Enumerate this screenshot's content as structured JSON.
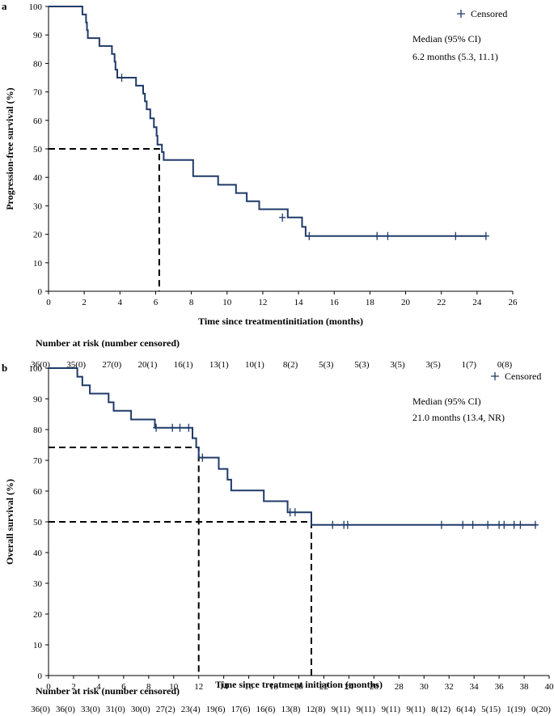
{
  "chart_data": [
    {
      "panel_label": "a",
      "type": "line",
      "subtype": "kaplan-meier",
      "title": "",
      "xlabel": "Time since treatmentinitiation (months)",
      "ylabel": "Progression-free survival (%)",
      "xlim": [
        0,
        26
      ],
      "ylim": [
        0,
        100
      ],
      "xticks": [
        0,
        2,
        4,
        6,
        8,
        10,
        12,
        14,
        16,
        18,
        20,
        22,
        24,
        26
      ],
      "yticks": [
        0,
        10,
        20,
        30,
        40,
        50,
        60,
        70,
        80,
        90,
        100
      ],
      "legend": {
        "label": "Censored",
        "marker": "+",
        "position": "top-right"
      },
      "annotation": {
        "line1": "Median (95% CI)",
        "line2": "6.2 months (5.3,  11.1)"
      },
      "medians": [
        {
          "x": 6.2,
          "y": 50
        }
      ],
      "curve": [
        [
          0,
          100
        ],
        [
          1.9,
          100
        ],
        [
          1.9,
          97.2
        ],
        [
          2.1,
          97.2
        ],
        [
          2.1,
          94.4
        ],
        [
          2.15,
          94.4
        ],
        [
          2.15,
          91.7
        ],
        [
          2.2,
          91.7
        ],
        [
          2.2,
          88.9
        ],
        [
          2.85,
          88.9
        ],
        [
          2.85,
          86.1
        ],
        [
          3.55,
          86.1
        ],
        [
          3.55,
          83.3
        ],
        [
          3.7,
          83.3
        ],
        [
          3.7,
          80.6
        ],
        [
          3.75,
          80.6
        ],
        [
          3.75,
          77.8
        ],
        [
          3.85,
          77.8
        ],
        [
          3.85,
          75.0
        ],
        [
          4.9,
          75.0
        ],
        [
          4.9,
          72.2
        ],
        [
          5.3,
          72.2
        ],
        [
          5.3,
          69.4
        ],
        [
          5.4,
          69.4
        ],
        [
          5.4,
          66.7
        ],
        [
          5.5,
          66.7
        ],
        [
          5.5,
          63.9
        ],
        [
          5.7,
          63.9
        ],
        [
          5.7,
          60.7
        ],
        [
          5.9,
          60.7
        ],
        [
          5.9,
          57.6
        ],
        [
          6.05,
          57.6
        ],
        [
          6.05,
          54.6
        ],
        [
          6.1,
          54.6
        ],
        [
          6.1,
          51.5
        ],
        [
          6.35,
          51.5
        ],
        [
          6.35,
          48.9
        ],
        [
          6.45,
          48.9
        ],
        [
          6.45,
          46.1
        ],
        [
          8.1,
          46.1
        ],
        [
          8.1,
          40.4
        ],
        [
          9.5,
          40.4
        ],
        [
          9.5,
          37.4
        ],
        [
          10.5,
          37.4
        ],
        [
          10.5,
          34.5
        ],
        [
          11.1,
          34.5
        ],
        [
          11.1,
          31.6
        ],
        [
          11.8,
          31.6
        ],
        [
          11.8,
          28.8
        ],
        [
          13.4,
          28.8
        ],
        [
          13.4,
          25.9
        ],
        [
          14.2,
          25.9
        ],
        [
          14.2,
          22.6
        ],
        [
          14.4,
          22.6
        ],
        [
          14.4,
          19.4
        ],
        [
          24.5,
          19.4
        ]
      ],
      "censored": [
        [
          4.1,
          75.0
        ],
        [
          13.1,
          25.9
        ],
        [
          14.6,
          19.4
        ],
        [
          18.4,
          19.4
        ],
        [
          19.0,
          19.4
        ],
        [
          22.8,
          19.4
        ],
        [
          24.5,
          19.4
        ]
      ],
      "risk_table": {
        "title": "Number at risk (number censored)",
        "values": [
          "36(0)",
          "35(0)",
          "27(0)",
          "20(1)",
          "16(1)",
          "13(1)",
          "10(1)",
          "8(2)",
          "5(3)",
          "5(3)",
          "3(5)",
          "3(5)",
          "1(7)",
          "0(8)"
        ]
      }
    },
    {
      "panel_label": "b",
      "type": "line",
      "subtype": "kaplan-meier",
      "title": "",
      "xlabel": "Time since treatment initiation (months)",
      "ylabel": "Overall survival (%)",
      "xlim": [
        0,
        40
      ],
      "ylim": [
        0,
        100
      ],
      "xticks": [
        0,
        2,
        4,
        6,
        8,
        10,
        12,
        14,
        16,
        18,
        20,
        22,
        24,
        26,
        28,
        30,
        32,
        34,
        36,
        38,
        40
      ],
      "yticks": [
        0,
        10,
        20,
        30,
        40,
        50,
        60,
        70,
        80,
        90,
        100
      ],
      "legend": {
        "label": "Censored",
        "marker": "+",
        "position": "top-right"
      },
      "annotation": {
        "line1": "Median (95% CI)",
        "line2": "21.0 months (13.4, NR)"
      },
      "medians": [
        {
          "x": 12.0,
          "y": 74.2
        },
        {
          "x": 21.0,
          "y": 50
        }
      ],
      "curve": [
        [
          0,
          100
        ],
        [
          2.3,
          100
        ],
        [
          2.3,
          97.2
        ],
        [
          2.7,
          97.2
        ],
        [
          2.7,
          94.4
        ],
        [
          3.3,
          94.4
        ],
        [
          3.3,
          91.7
        ],
        [
          4.8,
          91.7
        ],
        [
          4.8,
          88.9
        ],
        [
          5.2,
          88.9
        ],
        [
          5.2,
          86.1
        ],
        [
          6.6,
          86.1
        ],
        [
          6.6,
          83.3
        ],
        [
          8.5,
          83.3
        ],
        [
          8.5,
          80.6
        ],
        [
          11.5,
          80.6
        ],
        [
          11.5,
          77.2
        ],
        [
          11.8,
          77.2
        ],
        [
          11.8,
          74.2
        ],
        [
          12.0,
          74.2
        ],
        [
          12.0,
          70.9
        ],
        [
          13.6,
          70.9
        ],
        [
          13.6,
          67.2
        ],
        [
          14.3,
          67.2
        ],
        [
          14.3,
          63.7
        ],
        [
          14.6,
          63.7
        ],
        [
          14.6,
          60.2
        ],
        [
          17.2,
          60.2
        ],
        [
          17.2,
          56.7
        ],
        [
          19.1,
          56.7
        ],
        [
          19.1,
          53.1
        ],
        [
          21.0,
          53.1
        ],
        [
          21.0,
          49.0
        ],
        [
          39.0,
          49.0
        ]
      ],
      "censored": [
        [
          8.6,
          80.6
        ],
        [
          9.9,
          80.6
        ],
        [
          10.5,
          80.6
        ],
        [
          11.2,
          80.6
        ],
        [
          12.3,
          70.9
        ],
        [
          19.3,
          53.1
        ],
        [
          19.7,
          53.1
        ],
        [
          22.7,
          49.0
        ],
        [
          23.6,
          49.0
        ],
        [
          23.9,
          49.0
        ],
        [
          31.4,
          49.0
        ],
        [
          33.1,
          49.0
        ],
        [
          33.9,
          49.0
        ],
        [
          35.1,
          49.0
        ],
        [
          36.0,
          49.0
        ],
        [
          36.4,
          49.0
        ],
        [
          37.2,
          49.0
        ],
        [
          37.7,
          49.0
        ],
        [
          38.9,
          49.0
        ]
      ],
      "risk_table": {
        "title": "Number at risk (number censored)",
        "values": [
          "36(0)",
          "36(0)",
          "33(0)",
          "31(0)",
          "30(0)",
          "27(2)",
          "23(4)",
          "19(6)",
          "17(6)",
          "16(6)",
          "13(8)",
          "12(8)",
          "9(11)",
          "9(11)",
          "9(11)",
          "9(11)",
          "8(12)",
          "6(14)",
          "5(15)",
          "1(19)",
          "0(20)"
        ]
      }
    }
  ],
  "colors": {
    "curve": "#1f3a68",
    "median_line": "#000000",
    "axis": "#000000"
  }
}
